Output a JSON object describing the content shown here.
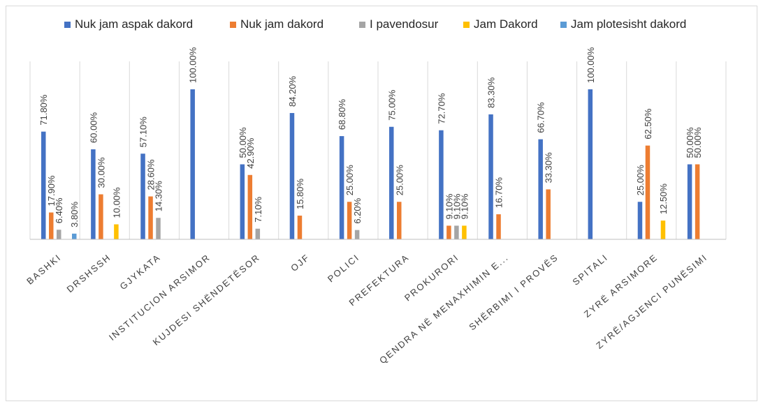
{
  "chart_data": {
    "type": "bar",
    "title": "",
    "xlabel": "",
    "ylabel": "",
    "ylim": [
      0,
      100
    ],
    "grid": false,
    "legend_position": "top",
    "categories": [
      "BASHKI",
      "DRSHSSH",
      "GJYKATA",
      "INSTITUCION ARSIMOR",
      "KUJDESI SHËNDETËSOR",
      "OJF",
      "POLICI",
      "PREFEKTURA",
      "PROKURORI",
      "QENDRA NË MENAXHIMIN E...",
      "SHËRBIMI I PROVËS",
      "SPITALI",
      "ZYRË ARSIMORE",
      "ZYRË/AGJENCI PUNËSIMI"
    ],
    "series": [
      {
        "name": "Nuk jam aspak dakord",
        "color": "#4472c4",
        "values": [
          71.8,
          60.0,
          57.1,
          100.0,
          50.0,
          84.2,
          68.8,
          75.0,
          72.7,
          83.3,
          66.7,
          100.0,
          25.0,
          50.0
        ],
        "labels": [
          "71.80%",
          "60.00%",
          "57.10%",
          "100.00%",
          "50.00%",
          "84.20%",
          "68.80%",
          "75.00%",
          "72.70%",
          "83.30%",
          "66.70%",
          "100.00%",
          "25.00%",
          "50.00%"
        ]
      },
      {
        "name": "Nuk jam dakord",
        "color": "#ed7d31",
        "values": [
          17.9,
          30.0,
          28.6,
          null,
          42.9,
          15.8,
          25.0,
          25.0,
          9.1,
          16.7,
          33.3,
          null,
          62.5,
          50.0
        ],
        "labels": [
          "17.90%",
          "30.00%",
          "28.60%",
          "",
          "42.90%",
          "15.80%",
          "25.00%",
          "25.00%",
          "9.10%",
          "16.70%",
          "33.30%",
          "",
          "62.50%",
          "50.00%"
        ]
      },
      {
        "name": "I pavendosur",
        "color": "#a5a5a5",
        "values": [
          6.4,
          null,
          14.3,
          null,
          7.1,
          null,
          6.2,
          null,
          9.1,
          null,
          null,
          null,
          null,
          null
        ],
        "labels": [
          "6.40%",
          "",
          "14.30%",
          "",
          "7.10%",
          "",
          "6.20%",
          "",
          "9.10%",
          "",
          "",
          "",
          "",
          ""
        ]
      },
      {
        "name": "Jam Dakord",
        "color": "#ffc000",
        "values": [
          null,
          10.0,
          null,
          null,
          null,
          null,
          null,
          null,
          9.1,
          null,
          null,
          null,
          12.5,
          null
        ],
        "labels": [
          "",
          "10.00%",
          "",
          "",
          "",
          "",
          "",
          "",
          "9.10%",
          "",
          "",
          "",
          "12.50%",
          ""
        ]
      },
      {
        "name": "Jam plotesisht dakord",
        "color": "#5b9bd5",
        "values": [
          3.8,
          null,
          null,
          null,
          null,
          null,
          null,
          null,
          null,
          null,
          null,
          null,
          null,
          null
        ],
        "labels": [
          "3.80%",
          "",
          "",
          "",
          "",
          "",
          "",
          "",
          "",
          "",
          "",
          "",
          "",
          ""
        ]
      }
    ]
  }
}
